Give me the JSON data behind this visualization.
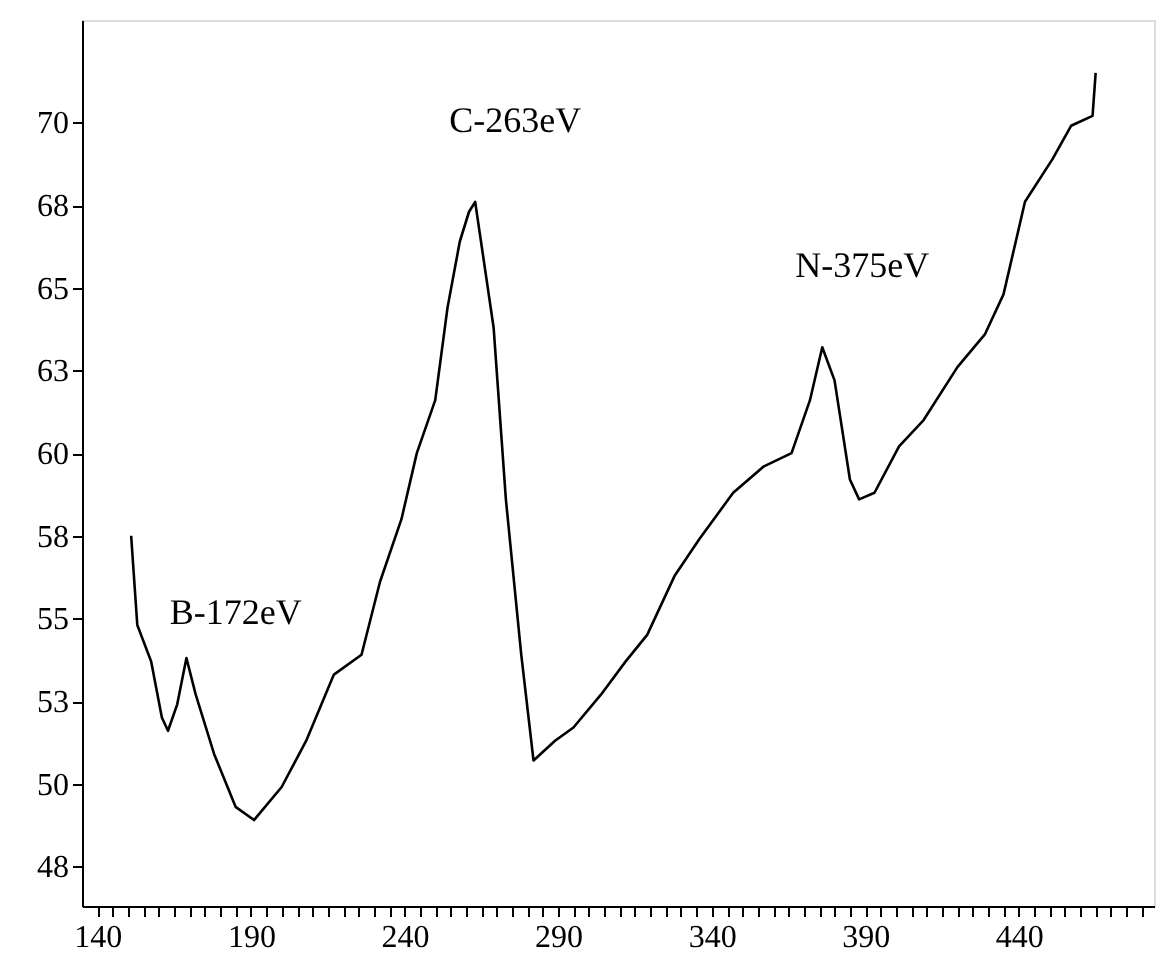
{
  "chart_data": {
    "type": "line",
    "xlim": [
      135,
      484
    ],
    "ylim": [
      46.3,
      73.1
    ],
    "xticks": [
      140,
      {
        "value": 145,
        "label": null
      },
      {
        "value": 150,
        "label": null
      },
      {
        "value": 155,
        "label": null
      },
      {
        "value": 160,
        "label": null
      },
      {
        "value": 165,
        "label": null
      },
      {
        "value": 170,
        "label": null
      },
      {
        "value": 175,
        "label": null
      },
      {
        "value": 180,
        "label": null
      },
      {
        "value": 185,
        "label": null
      },
      190,
      {
        "value": 195,
        "label": null
      },
      {
        "value": 200,
        "label": null
      },
      {
        "value": 205,
        "label": null
      },
      {
        "value": 210,
        "label": null
      },
      {
        "value": 215,
        "label": null
      },
      {
        "value": 220,
        "label": null
      },
      {
        "value": 225,
        "label": null
      },
      {
        "value": 230,
        "label": null
      },
      {
        "value": 235,
        "label": null
      },
      240,
      {
        "value": 245,
        "label": null
      },
      {
        "value": 250,
        "label": null
      },
      {
        "value": 255,
        "label": null
      },
      {
        "value": 260,
        "label": null
      },
      {
        "value": 265,
        "label": null
      },
      {
        "value": 270,
        "label": null
      },
      {
        "value": 275,
        "label": null
      },
      {
        "value": 280,
        "label": null
      },
      {
        "value": 285,
        "label": null
      },
      290,
      {
        "value": 295,
        "label": null
      },
      {
        "value": 300,
        "label": null
      },
      {
        "value": 305,
        "label": null
      },
      {
        "value": 310,
        "label": null
      },
      {
        "value": 315,
        "label": null
      },
      {
        "value": 320,
        "label": null
      },
      {
        "value": 325,
        "label": null
      },
      {
        "value": 330,
        "label": null
      },
      {
        "value": 335,
        "label": null
      },
      340,
      {
        "value": 345,
        "label": null
      },
      {
        "value": 350,
        "label": null
      },
      {
        "value": 355,
        "label": null
      },
      {
        "value": 360,
        "label": null
      },
      {
        "value": 365,
        "label": null
      },
      {
        "value": 370,
        "label": null
      },
      {
        "value": 375,
        "label": null
      },
      {
        "value": 380,
        "label": null
      },
      {
        "value": 385,
        "label": null
      },
      390,
      {
        "value": 395,
        "label": null
      },
      {
        "value": 400,
        "label": null
      },
      {
        "value": 405,
        "label": null
      },
      {
        "value": 410,
        "label": null
      },
      {
        "value": 415,
        "label": null
      },
      {
        "value": 420,
        "label": null
      },
      {
        "value": 425,
        "label": null
      },
      {
        "value": 430,
        "label": null
      },
      {
        "value": 435,
        "label": null
      },
      440,
      {
        "value": 445,
        "label": null
      },
      {
        "value": 450,
        "label": null
      },
      {
        "value": 455,
        "label": null
      },
      {
        "value": 460,
        "label": null
      },
      {
        "value": 465,
        "label": null
      },
      {
        "value": 470,
        "label": null
      },
      {
        "value": 475,
        "label": null
      },
      {
        "value": 480,
        "label": null
      }
    ],
    "yticks": [
      {
        "value": 47.5,
        "label": "48"
      },
      50,
      {
        "value": 52.5,
        "label": "53"
      },
      55,
      {
        "value": 57.5,
        "label": "58"
      },
      60,
      {
        "value": 62.5,
        "label": "63"
      },
      65,
      {
        "value": 67.5,
        "label": "68"
      },
      70
    ],
    "grid": false,
    "marker": "none",
    "line_style": "solid",
    "series": [
      {
        "color": "#000000",
        "x": [
          151,
          153,
          157.5,
          161,
          163,
          166,
          169,
          172,
          178,
          185,
          191,
          200,
          208,
          217,
          226,
          232,
          239,
          244,
          250,
          254,
          258,
          261,
          263,
          269,
          273,
          278,
          282,
          289,
          295,
          304,
          312,
          319,
          328,
          336,
          347,
          357,
          366,
          372,
          376,
          380,
          385,
          388,
          393,
          401,
          409,
          420,
          429,
          435,
          442,
          451,
          457,
          464,
          465
        ],
        "values": [
          57.5,
          54.8,
          53.7,
          52.0,
          51.6,
          52.4,
          53.8,
          52.7,
          50.9,
          49.3,
          48.9,
          49.9,
          51.3,
          53.3,
          53.9,
          56.1,
          58.0,
          60.0,
          61.6,
          64.4,
          66.4,
          67.3,
          67.6,
          63.8,
          58.6,
          53.9,
          50.7,
          51.3,
          51.7,
          52.7,
          53.7,
          54.5,
          56.3,
          57.4,
          58.8,
          59.6,
          60.0,
          61.6,
          63.2,
          62.2,
          59.2,
          58.6,
          58.8,
          60.2,
          61.0,
          62.6,
          63.6,
          64.8,
          67.6,
          68.9,
          69.9,
          70.2,
          71.5
        ]
      }
    ],
    "annotations": [
      {
        "text": "B-172eV",
        "x": 172,
        "y": 52.7
      },
      {
        "text": "C-263eV",
        "x": 263,
        "y": 67.6
      },
      {
        "text": "N-375eV",
        "x": 376,
        "y": 63.2
      }
    ]
  }
}
